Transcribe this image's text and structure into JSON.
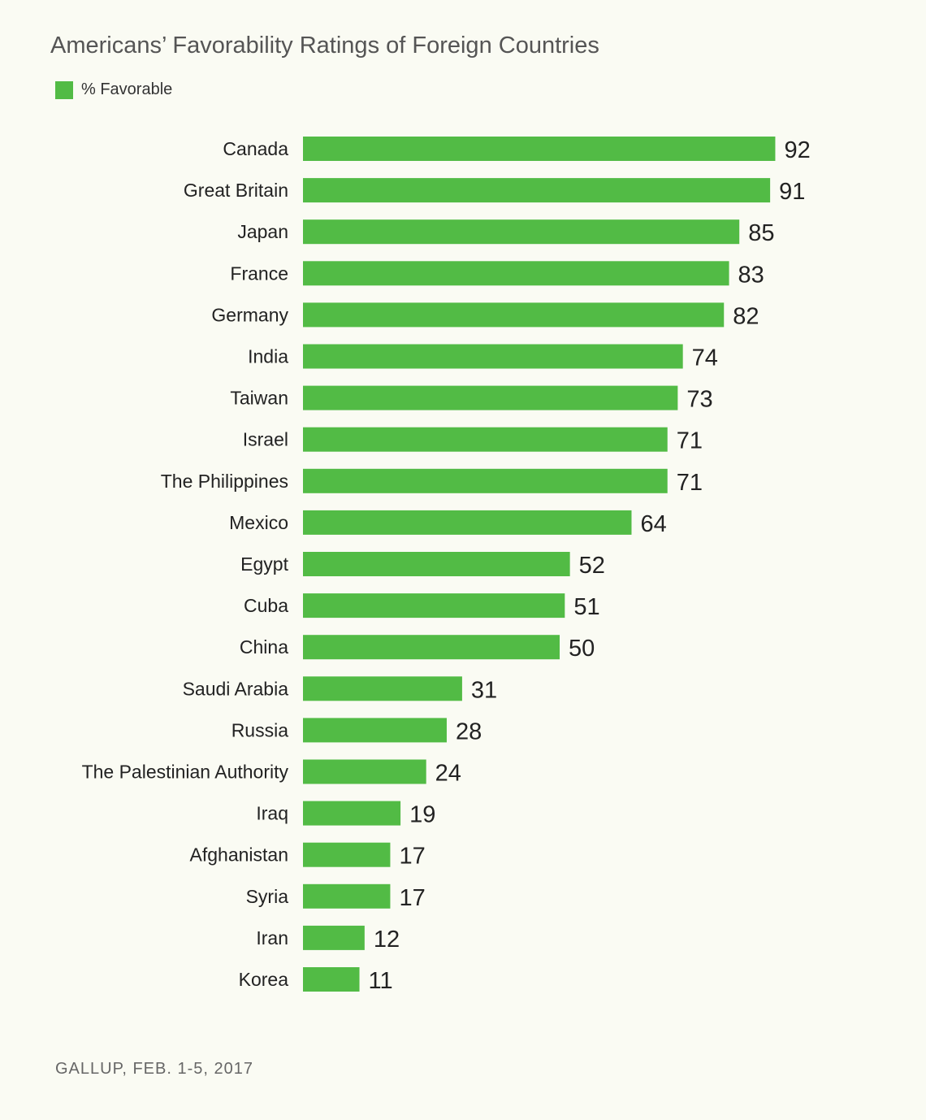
{
  "chart_data": {
    "type": "bar",
    "orientation": "horizontal",
    "title": "Americans’ Favorability Ratings of Foreign Countries",
    "legend": {
      "placement": "top-left",
      "entries": [
        "% Favorable"
      ]
    },
    "categories": [
      "Canada",
      "Great Britain",
      "Japan",
      "France",
      "Germany",
      "India",
      "Taiwan",
      "Israel",
      "The Philippines",
      "Mexico",
      "Egypt",
      "Cuba",
      "China",
      "Saudi Arabia",
      "Russia",
      "The Palestinian Authority",
      "Iraq",
      "Afghanistan",
      "Syria",
      "Iran",
      "Korea"
    ],
    "series": [
      {
        "name": "% Favorable",
        "values": [
          92,
          91,
          85,
          83,
          82,
          74,
          73,
          71,
          71,
          64,
          52,
          51,
          50,
          31,
          28,
          24,
          19,
          17,
          17,
          12,
          11
        ]
      }
    ],
    "xlim": [
      0,
      100
    ],
    "grid": false,
    "data_labels": true,
    "source": "GALLUP, FEB. 1-5, 2017"
  },
  "colors": {
    "bar": "#52bb45",
    "background": "#fafbf3"
  }
}
